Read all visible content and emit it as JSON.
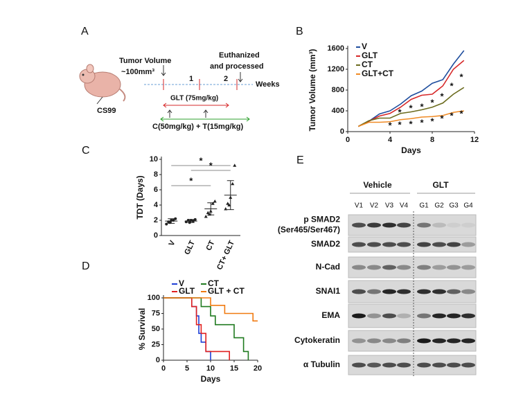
{
  "panel_a": {
    "letter": "A",
    "tumor_volume": "Tumor Volume",
    "start_volume": "~100mm³",
    "endpoint": [
      "Euthanized",
      "and processed"
    ],
    "weeks": [
      "1",
      "2"
    ],
    "weeks_label": "Weeks",
    "glt_dose": "GLT (75mg/kg)",
    "ct_dose": "C(50mg/kg) + T(15mg/kg)",
    "model": "CS99"
  },
  "chart_data": [
    {
      "panel": "B",
      "type": "line",
      "x": [
        1,
        2,
        3,
        4,
        5,
        6,
        7,
        8,
        9,
        10,
        11
      ],
      "series": [
        {
          "name": "V",
          "color": "#1f4e9e",
          "values": [
            100,
            200,
            340,
            400,
            530,
            690,
            780,
            930,
            1000,
            1300,
            1560
          ]
        },
        {
          "name": "GLT",
          "color": "#d62728",
          "values": [
            100,
            200,
            300,
            350,
            470,
            620,
            700,
            720,
            880,
            1200,
            1370
          ]
        },
        {
          "name": "CT",
          "color": "#6b6b1e",
          "values": [
            100,
            210,
            260,
            260,
            350,
            380,
            420,
            470,
            550,
            720,
            850
          ]
        },
        {
          "name": "GLT+CT",
          "color": "#f08a24",
          "values": [
            100,
            180,
            180,
            190,
            230,
            250,
            280,
            290,
            310,
            370,
            400
          ]
        }
      ],
      "xlim": [
        0,
        12
      ],
      "xticks": [
        0,
        4,
        8,
        12
      ],
      "ylim": [
        0,
        1600
      ],
      "yticks": [
        0,
        400,
        800,
        1200,
        1600
      ],
      "xlabel": "Days",
      "ylabel": "Tumor Volume (mm³)",
      "annotation": "*"
    },
    {
      "panel": "C",
      "type": "dotplot",
      "categories": [
        "V",
        "GLT",
        "CT",
        "CT+ GLT"
      ],
      "values": [
        [
          1.5,
          1.8,
          2.0,
          2.0,
          2.2,
          1.7
        ],
        [
          1.8,
          2.0,
          2.0,
          1.9,
          2.1,
          1.7
        ],
        [
          2.5,
          3.0,
          3.2,
          4.2,
          4.5,
          2.8
        ],
        [
          3.5,
          4.2,
          5.0,
          6.8,
          9.2,
          4.0
        ]
      ],
      "mean": [
        1.9,
        1.9,
        3.5,
        5.3
      ],
      "sd": [
        0.3,
        0.2,
        0.8,
        1.9
      ],
      "ylim": [
        0,
        10
      ],
      "yticks": [
        0,
        2,
        4,
        6,
        8,
        10
      ],
      "ylabel": "TDT (Days)",
      "annotation": "*"
    },
    {
      "panel": "D",
      "type": "step",
      "series": [
        {
          "name": "V",
          "color": "#1f3fd6",
          "x": [
            0,
            6,
            7,
            7.5,
            8,
            9,
            10
          ],
          "values": [
            100,
            86,
            71,
            43,
            29,
            14,
            0
          ]
        },
        {
          "name": "GLT",
          "color": "#e02020",
          "x": [
            0,
            6,
            7,
            8,
            9,
            14
          ],
          "values": [
            100,
            86,
            57,
            43,
            14,
            0
          ]
        },
        {
          "name": "CT",
          "color": "#1f7a1f",
          "x": [
            0,
            8,
            10,
            11,
            15,
            17,
            18
          ],
          "values": [
            100,
            86,
            71,
            57,
            36,
            14,
            0
          ]
        },
        {
          "name": "GLT + CT",
          "color": "#f07a10",
          "x": [
            0,
            10,
            13,
            19,
            20
          ],
          "values": [
            100,
            88,
            75,
            63,
            63
          ]
        }
      ],
      "xlim": [
        0,
        20
      ],
      "xticks": [
        0,
        5,
        10,
        15,
        20
      ],
      "ylim": [
        0,
        100
      ],
      "yticks": [
        0,
        25,
        50,
        75,
        100
      ],
      "xlabel": "Days",
      "ylabel": "% Survival"
    }
  ],
  "panel_e": {
    "letter": "E",
    "groups": [
      "Vehicle",
      "GLT"
    ],
    "lanes": [
      "V1",
      "V2",
      "V3",
      "V4",
      "G1",
      "G2",
      "G3",
      "G4"
    ],
    "rows": [
      [
        "p SMAD2",
        "(Ser465/Ser467)"
      ],
      [
        "SMAD2"
      ],
      [
        "N-Cad"
      ],
      [
        "SNAI1"
      ],
      [
        "EMA"
      ],
      [
        "Cytokeratin"
      ],
      [
        "α Tubulin"
      ]
    ]
  }
}
